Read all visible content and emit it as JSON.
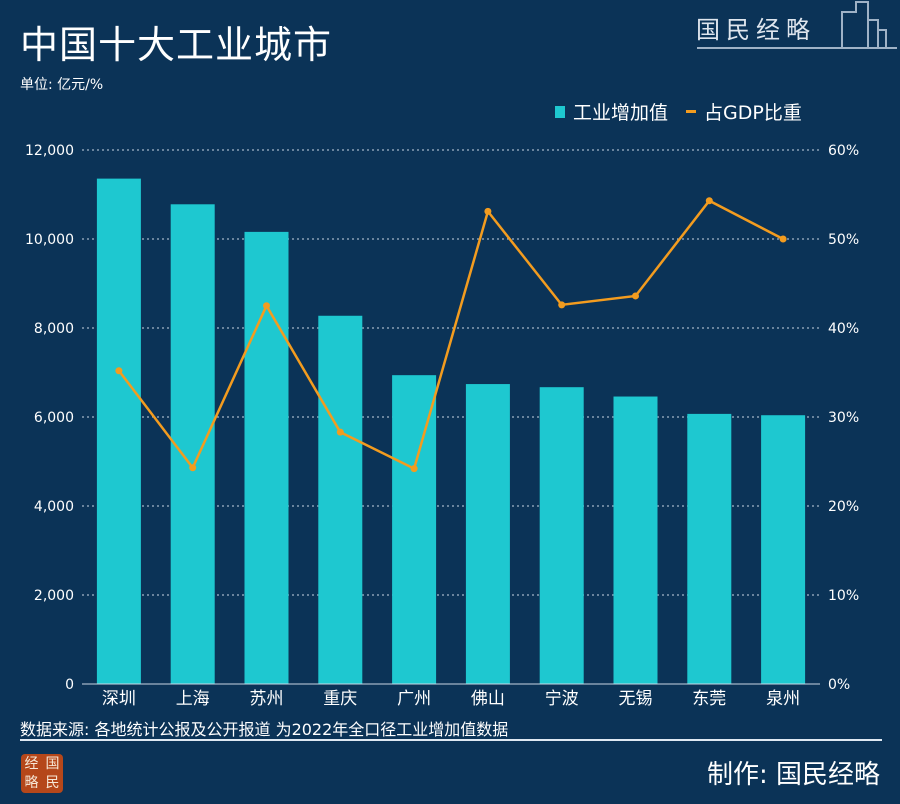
{
  "header": {
    "title": "中国十大工业城市",
    "unit": "单位: 亿元/%",
    "brand": "国民经略"
  },
  "footer": {
    "source": "数据来源: 各地统计公报及公开报道 为2022年全口径工业增加值数据",
    "maker": "制作: 国民经略",
    "stamp": [
      "经",
      "国",
      "略",
      "民"
    ]
  },
  "chart_data": {
    "type": "bar+line",
    "categories": [
      "深圳",
      "上海",
      "苏州",
      "重庆",
      "广州",
      "佛山",
      "宁波",
      "无锡",
      "东莞",
      "泉州"
    ],
    "series": [
      {
        "name": "工业增加值",
        "type": "bar",
        "axis": "left",
        "color": "#1ec8d0",
        "values": [
          11357,
          10780,
          10160,
          8275,
          6940,
          6740,
          6670,
          6460,
          6070,
          6040
        ]
      },
      {
        "name": "占GDP比重",
        "type": "line",
        "axis": "right",
        "color": "#f39c1f",
        "values": [
          35.2,
          24.3,
          42.5,
          28.3,
          24.2,
          53.1,
          42.6,
          43.6,
          54.3,
          50.0
        ]
      }
    ],
    "left_axis": {
      "ylim": [
        0,
        12000
      ],
      "ticks": [
        "0",
        "2,000",
        "4,000",
        "6,000",
        "8,000",
        "10,000",
        "12,000"
      ]
    },
    "right_axis": {
      "ylim": [
        0,
        60
      ],
      "ticks": [
        "0%",
        "10%",
        "20%",
        "30%",
        "40%",
        "50%",
        "60%"
      ]
    },
    "grid": true,
    "legend": "top-right"
  }
}
